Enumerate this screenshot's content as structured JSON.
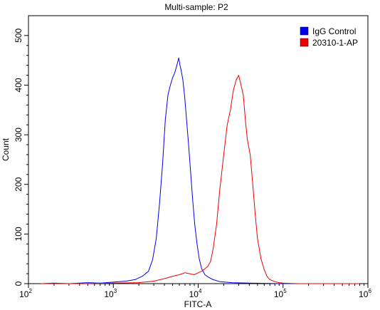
{
  "chart_data": {
    "type": "line",
    "title": "Multi-sample: P2",
    "xlabel": "FITC-A",
    "ylabel": "Count",
    "xscale": "log",
    "xlim": [
      100,
      1000000
    ],
    "ylim": [
      0,
      540
    ],
    "grid": false,
    "legend_position": "top-right",
    "x_ticks": [
      {
        "base": "10",
        "exp": "2",
        "value": 100
      },
      {
        "base": "10",
        "exp": "3",
        "value": 1000
      },
      {
        "base": "10",
        "exp": "4",
        "value": 10000
      },
      {
        "base": "10",
        "exp": "5",
        "value": 100000
      },
      {
        "base": "10",
        "exp": "6",
        "value": 1000000
      }
    ],
    "y_ticks": [
      "0",
      "100",
      "200",
      "300",
      "400",
      "500"
    ],
    "series": [
      {
        "name": "IgG Control",
        "color": "#0000ee",
        "x": [
          140,
          200,
          300,
          500,
          700,
          1000,
          1400,
          1800,
          2200,
          2600,
          2900,
          3200,
          3500,
          3800,
          4100,
          4400,
          4700,
          5000,
          5300,
          5600,
          5900,
          6100,
          6300,
          6600,
          6900,
          7300,
          7700,
          8100,
          8600,
          9100,
          9700,
          10300,
          11000,
          12000,
          13500,
          15000,
          18000,
          25000,
          40000,
          100000,
          300000,
          800000
        ],
        "values": [
          0,
          1,
          0,
          2,
          1,
          3,
          5,
          8,
          15,
          25,
          48,
          90,
          160,
          240,
          330,
          380,
          400,
          415,
          425,
          440,
          455,
          440,
          430,
          410,
          380,
          330,
          280,
          230,
          170,
          120,
          80,
          50,
          30,
          18,
          12,
          8,
          4,
          2,
          1,
          0,
          0,
          0
        ]
      },
      {
        "name": "20310-1-AP",
        "color": "#ee0000",
        "x": [
          140,
          500,
          1000,
          2000,
          3000,
          4000,
          5000,
          6000,
          7000,
          8000,
          9000,
          10000,
          11000,
          12000,
          13000,
          14000,
          15000,
          16500,
          18000,
          20000,
          22000,
          24000,
          26000,
          28000,
          30000,
          32000,
          34000,
          36000,
          38000,
          41000,
          44000,
          47000,
          50000,
          55000,
          60000,
          65000,
          70000,
          80000,
          90000,
          100000,
          150000,
          300000,
          800000
        ],
        "values": [
          0,
          0,
          1,
          2,
          5,
          10,
          15,
          18,
          22,
          20,
          18,
          22,
          25,
          30,
          35,
          45,
          70,
          120,
          190,
          260,
          320,
          350,
          390,
          410,
          420,
          400,
          380,
          330,
          290,
          260,
          200,
          140,
          90,
          50,
          28,
          14,
          8,
          4,
          2,
          1,
          0,
          0,
          0
        ]
      }
    ]
  }
}
